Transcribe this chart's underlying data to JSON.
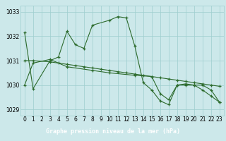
{
  "title": "Graphe pression niveau de la mer (hPa)",
  "bg_color": "#cce8ea",
  "grid_color": "#9ecece",
  "line_color": "#2d6b2d",
  "marker_color": "#2d6b2d",
  "label_bg": "#3a7a3a",
  "label_fg": "#ffffff",
  "ylim": [
    1028.75,
    1033.25
  ],
  "yticks": [
    1029,
    1030,
    1031,
    1032,
    1033
  ],
  "xlim": [
    -0.5,
    23.5
  ],
  "xticks": [
    0,
    1,
    2,
    3,
    4,
    5,
    6,
    7,
    8,
    9,
    10,
    11,
    12,
    13,
    14,
    15,
    16,
    17,
    18,
    19,
    20,
    21,
    22,
    23
  ],
  "series1_x": [
    0,
    1,
    3,
    4,
    5,
    6,
    7,
    8,
    10,
    11,
    12,
    13,
    14,
    15,
    16,
    17,
    18,
    19,
    20,
    21,
    22,
    23
  ],
  "series1_y": [
    1032.15,
    1029.85,
    1031.0,
    1031.15,
    1032.2,
    1031.65,
    1031.5,
    1032.45,
    1032.65,
    1032.8,
    1032.75,
    1031.6,
    1030.1,
    1029.8,
    1029.35,
    1029.2,
    1030.0,
    1030.05,
    1030.0,
    1029.8,
    1029.55,
    1029.3
  ],
  "series2_x": [
    0,
    1,
    3,
    4,
    5,
    6,
    7,
    8,
    9,
    10,
    11,
    12,
    13,
    14,
    15,
    16,
    17,
    18,
    19,
    20,
    21,
    22,
    23
  ],
  "series2_y": [
    1031.0,
    1031.0,
    1030.95,
    1030.9,
    1030.85,
    1030.8,
    1030.75,
    1030.7,
    1030.65,
    1030.6,
    1030.55,
    1030.5,
    1030.45,
    1030.4,
    1030.35,
    1030.3,
    1030.25,
    1030.2,
    1030.15,
    1030.1,
    1030.05,
    1030.0,
    1029.95
  ],
  "series3_x": [
    0,
    1,
    3,
    5,
    8,
    10,
    13,
    15,
    16,
    17,
    18,
    19,
    20,
    21,
    22,
    23
  ],
  "series3_y": [
    1030.0,
    1030.9,
    1031.05,
    1030.75,
    1030.6,
    1030.5,
    1030.4,
    1030.35,
    1029.65,
    1029.4,
    1030.0,
    1030.0,
    1030.0,
    1030.0,
    1029.8,
    1029.3
  ]
}
